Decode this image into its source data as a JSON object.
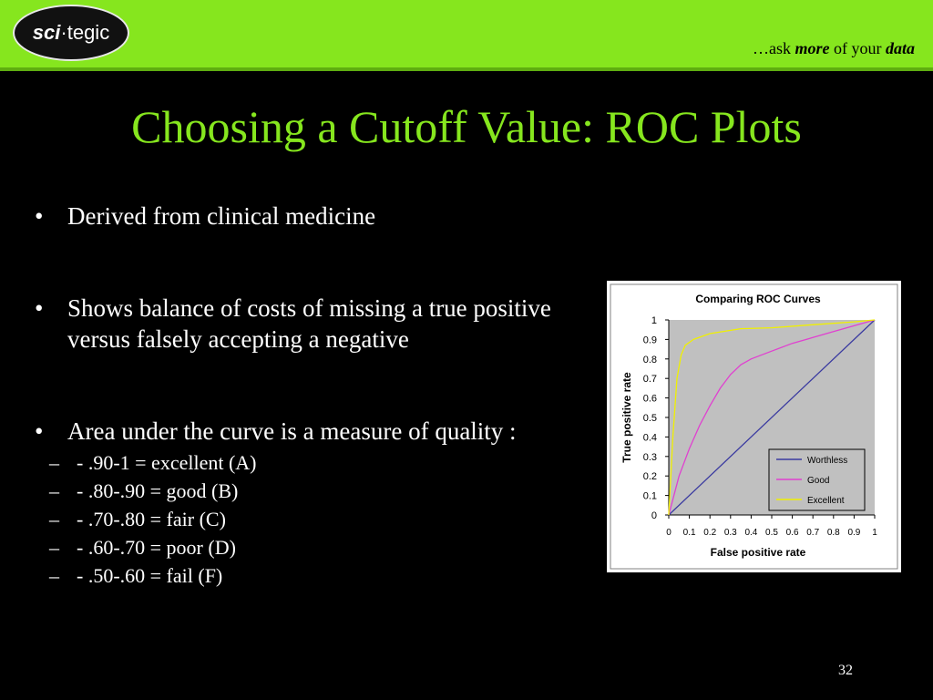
{
  "header": {
    "logo_text_bold": "sci",
    "logo_text_rest": "·tegic",
    "tagline_prefix": "…ask ",
    "tagline_more": "more",
    "tagline_mid": " of your ",
    "tagline_data": "data"
  },
  "slide": {
    "title": "Choosing a Cutoff Value: ROC Plots",
    "bullets": [
      {
        "text": "Derived from clinical medicine"
      },
      {
        "text": "Shows balance of costs of missing a true positive versus falsely accepting a negative"
      },
      {
        "text": "Area under the curve is a measure of quality :"
      }
    ],
    "sub_bullets": [
      "- .90-1 = excellent (A)",
      "- .80-.90 = good (B)",
      "- .70-.80 = fair (C)",
      "- .60-.70 = poor (D)",
      "- .50-.60 = fail (F)"
    ],
    "page_number": "32"
  },
  "colors": {
    "accent_green": "#86e61e",
    "plot_background": "#c0c0c0",
    "worthless": "#3a3aa0",
    "good": "#e040d0",
    "excellent": "#f0f000"
  },
  "chart_data": {
    "type": "line",
    "title": "Comparing ROC Curves",
    "xlabel": "False positive rate",
    "ylabel": "True positive rate",
    "xlim": [
      0,
      1
    ],
    "ylim": [
      0,
      1
    ],
    "x_ticks": [
      "0",
      "0.1",
      "0.2",
      "0.3",
      "0.4",
      "0.5",
      "0.6",
      "0.7",
      "0.8",
      "0.9",
      "1"
    ],
    "y_ticks": [
      "0",
      "0.1",
      "0.2",
      "0.3",
      "0.4",
      "0.5",
      "0.6",
      "0.7",
      "0.8",
      "0.9",
      "1"
    ],
    "legend_position": "bottom-right",
    "series": [
      {
        "name": "Worthless",
        "color": "#3a3aa0",
        "points": [
          [
            0,
            0
          ],
          [
            1,
            1
          ]
        ]
      },
      {
        "name": "Good",
        "color": "#e040d0",
        "points": [
          [
            0,
            0
          ],
          [
            0.05,
            0.2
          ],
          [
            0.1,
            0.34
          ],
          [
            0.15,
            0.46
          ],
          [
            0.2,
            0.56
          ],
          [
            0.25,
            0.65
          ],
          [
            0.3,
            0.72
          ],
          [
            0.35,
            0.77
          ],
          [
            0.4,
            0.8
          ],
          [
            0.5,
            0.84
          ],
          [
            0.6,
            0.88
          ],
          [
            0.7,
            0.91
          ],
          [
            0.8,
            0.94
          ],
          [
            0.9,
            0.97
          ],
          [
            1,
            1
          ]
        ]
      },
      {
        "name": "Excellent",
        "color": "#f0f000",
        "points": [
          [
            0,
            0
          ],
          [
            0.02,
            0.4
          ],
          [
            0.04,
            0.7
          ],
          [
            0.06,
            0.82
          ],
          [
            0.08,
            0.87
          ],
          [
            0.12,
            0.9
          ],
          [
            0.2,
            0.93
          ],
          [
            0.35,
            0.955
          ],
          [
            0.5,
            0.96
          ],
          [
            0.7,
            0.975
          ],
          [
            0.9,
            0.99
          ],
          [
            1,
            1
          ]
        ]
      }
    ]
  }
}
